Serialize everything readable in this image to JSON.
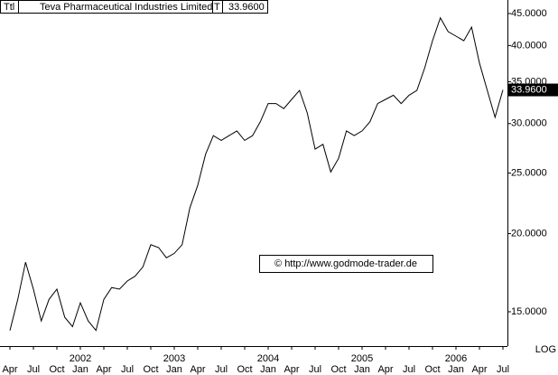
{
  "chart_data": {
    "type": "line",
    "title": "Teva Pharmaceutical Industries Limited",
    "header_left": "Ttl",
    "header_marker": "T",
    "header_value": "33.9600",
    "current_value_label": "33.9600",
    "watermark": "© http://www.godmode-trader.de",
    "scale_label": "LOG",
    "log_scale": true,
    "color": "#000000",
    "x": [
      "2001-04",
      "2001-05",
      "2001-06",
      "2001-07",
      "2001-08",
      "2001-09",
      "2001-10",
      "2001-11",
      "2001-12",
      "2002-01",
      "2002-02",
      "2002-03",
      "2002-04",
      "2002-05",
      "2002-06",
      "2002-07",
      "2002-08",
      "2002-09",
      "2002-10",
      "2002-11",
      "2002-12",
      "2003-01",
      "2003-02",
      "2003-03",
      "2003-04",
      "2003-05",
      "2003-06",
      "2003-07",
      "2003-08",
      "2003-09",
      "2003-10",
      "2003-11",
      "2003-12",
      "2004-01",
      "2004-02",
      "2004-03",
      "2004-04",
      "2004-05",
      "2004-06",
      "2004-07",
      "2004-08",
      "2004-09",
      "2004-10",
      "2004-11",
      "2004-12",
      "2005-01",
      "2005-02",
      "2005-03",
      "2005-04",
      "2005-05",
      "2005-06",
      "2005-07",
      "2005-08",
      "2005-09",
      "2005-10",
      "2005-11",
      "2005-12",
      "2006-01",
      "2006-02",
      "2006-03",
      "2006-04",
      "2006-05",
      "2006-06",
      "2006-07"
    ],
    "values": [
      14.0,
      15.7,
      18.0,
      16.3,
      14.5,
      15.7,
      16.3,
      14.7,
      14.2,
      15.5,
      14.5,
      14.0,
      15.7,
      16.4,
      16.3,
      16.8,
      17.1,
      17.7,
      19.2,
      19.0,
      18.3,
      18.6,
      19.2,
      22.0,
      23.9,
      26.8,
      28.7,
      28.2,
      28.7,
      29.2,
      28.2,
      28.7,
      30.2,
      32.3,
      32.3,
      31.7,
      32.8,
      33.9,
      31.2,
      27.3,
      27.8,
      25.1,
      26.4,
      29.2,
      28.7,
      29.2,
      30.2,
      32.3,
      32.8,
      33.3,
      32.3,
      33.3,
      33.9,
      36.8,
      40.7,
      44.3,
      42.1,
      41.4,
      40.7,
      42.8,
      37.5,
      33.9,
      30.7,
      33.96
    ],
    "ylim": [
      13.35,
      47.3
    ],
    "yticks": [
      {
        "value": 15,
        "label": "15.0000"
      },
      {
        "value": 20,
        "label": "20.0000"
      },
      {
        "value": 25,
        "label": "25.0000"
      },
      {
        "value": 30,
        "label": "30.0000"
      },
      {
        "value": 35,
        "label": "35.0000"
      },
      {
        "value": 40,
        "label": "40.0000"
      },
      {
        "value": 45,
        "label": "45.0000"
      }
    ],
    "xticks": [
      {
        "value": "2001-04",
        "label": "Apr"
      },
      {
        "value": "2001-07",
        "label": "Jul"
      },
      {
        "value": "2001-10",
        "label": "Oct"
      },
      {
        "value": "2002-01",
        "label": "Jan"
      },
      {
        "value": "2002-04",
        "label": "Apr"
      },
      {
        "value": "2002-07",
        "label": "Jul"
      },
      {
        "value": "2002-10",
        "label": "Oct"
      },
      {
        "value": "2003-01",
        "label": "Jan"
      },
      {
        "value": "2003-04",
        "label": "Apr"
      },
      {
        "value": "2003-07",
        "label": "Jul"
      },
      {
        "value": "2003-10",
        "label": "Oct"
      },
      {
        "value": "2004-01",
        "label": "Jan"
      },
      {
        "value": "2004-04",
        "label": "Apr"
      },
      {
        "value": "2004-07",
        "label": "Jul"
      },
      {
        "value": "2004-10",
        "label": "Oct"
      },
      {
        "value": "2005-01",
        "label": "Jan"
      },
      {
        "value": "2005-04",
        "label": "Apr"
      },
      {
        "value": "2005-07",
        "label": "Jul"
      },
      {
        "value": "2005-10",
        "label": "Oct"
      },
      {
        "value": "2006-01",
        "label": "Jan"
      },
      {
        "value": "2006-04",
        "label": "Apr"
      },
      {
        "value": "2006-07",
        "label": "Jul"
      }
    ],
    "year_labels": [
      {
        "value": "2002-01",
        "label": "2002"
      },
      {
        "value": "2003-01",
        "label": "2003"
      },
      {
        "value": "2004-01",
        "label": "2004"
      },
      {
        "value": "2005-01",
        "label": "2005"
      },
      {
        "value": "2006-01",
        "label": "2006"
      }
    ]
  }
}
